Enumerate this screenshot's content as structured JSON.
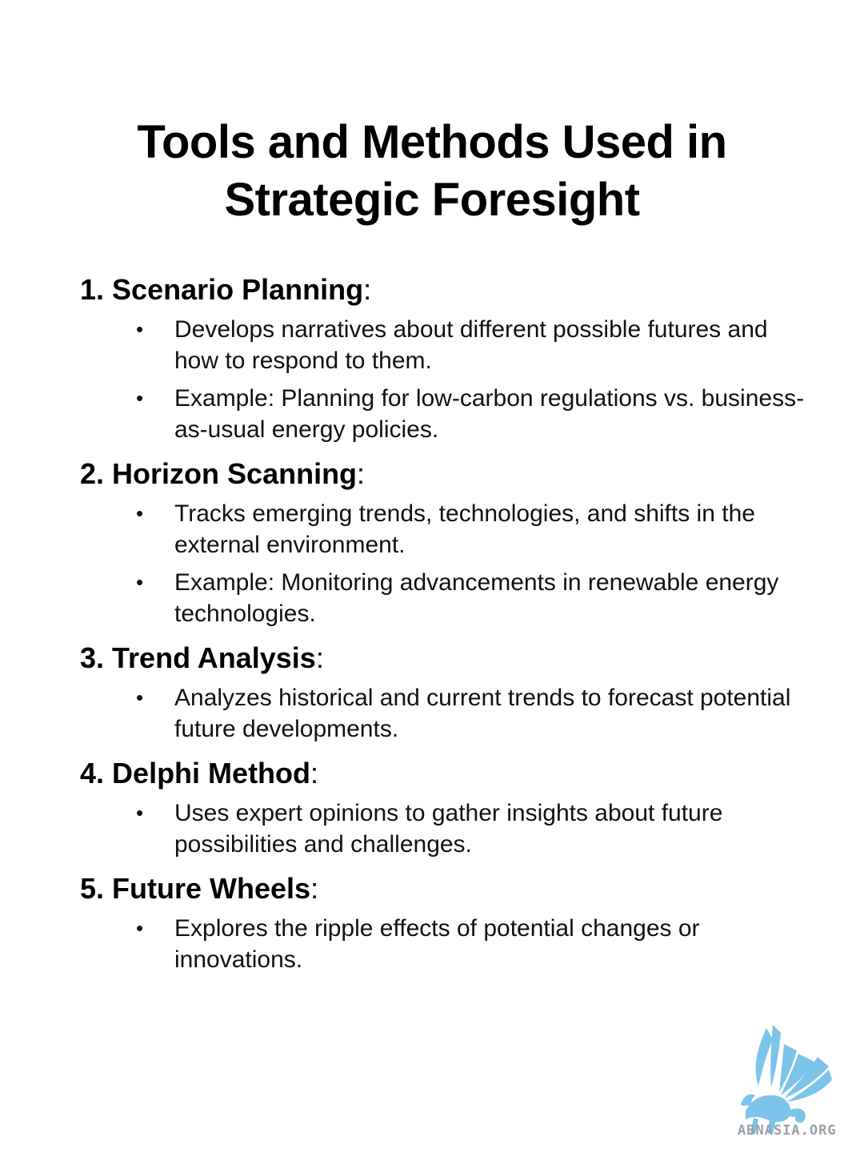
{
  "title": {
    "line1": "Tools and Methods Used in",
    "line2": "Strategic Foresight"
  },
  "sections": [
    {
      "number": "1.",
      "name": "Scenario Planning",
      "colon": ":",
      "bullets": [
        "Develops narratives about different possible futures and how to respond to them.",
        "Example: Planning for low-carbon regulations vs. business-as-usual energy policies."
      ]
    },
    {
      "number": "2.",
      "name": "Horizon Scanning",
      "colon": ":",
      "bullets": [
        "Tracks emerging trends, technologies, and shifts in the external environment.",
        "Example: Monitoring advancements in renewable energy technologies."
      ]
    },
    {
      "number": "3.",
      "name": "Trend Analysis",
      "colon": ":",
      "bullets": [
        "Analyzes historical and current trends to forecast potential future developments."
      ]
    },
    {
      "number": "4.",
      "name": "Delphi Method",
      "colon": ":",
      "bullets": [
        "Uses expert opinions to gather insights about future possibilities and challenges."
      ]
    },
    {
      "number": "5.",
      "name": "Future Wheels",
      "colon": ":",
      "bullets": [
        "Explores the ripple effects of potential changes or innovations."
      ]
    }
  ],
  "bullet_glyph": "•",
  "logo": {
    "icon": "griffin-logo-icon",
    "text": "ABNASIA.ORG",
    "color": "#7cc4ea"
  }
}
